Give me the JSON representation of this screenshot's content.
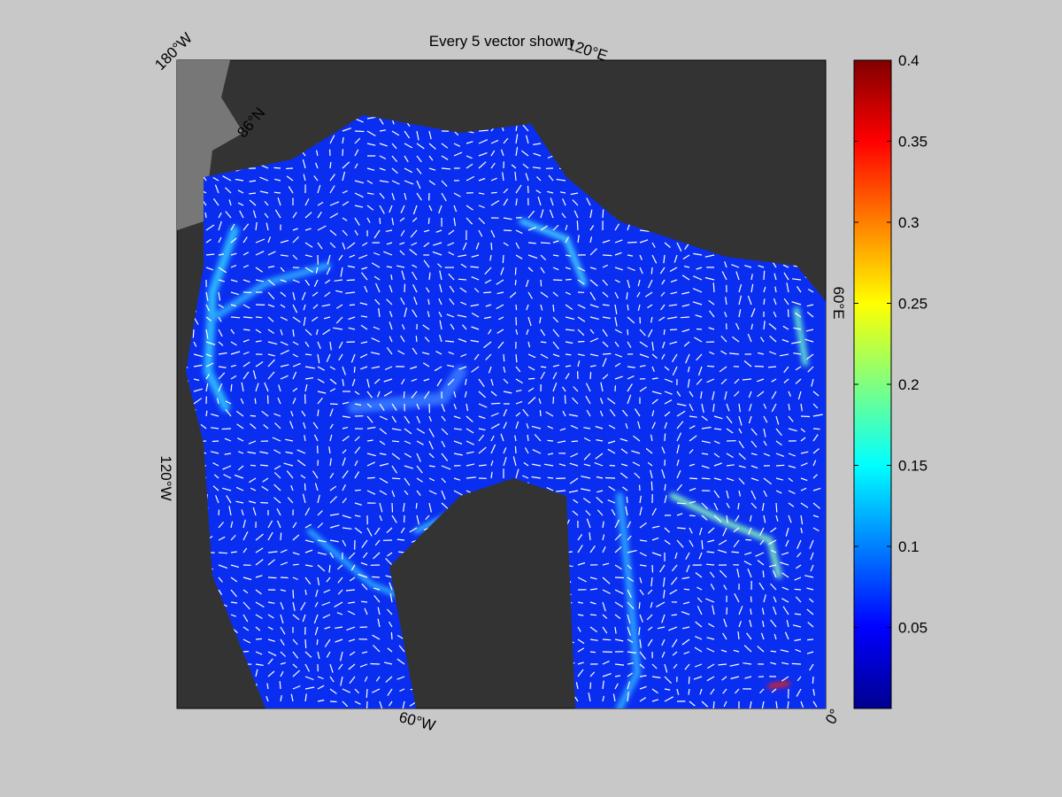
{
  "title": "Every 5 vector shown",
  "map_labels": {
    "lon_180w": "180°W",
    "lon_120e": "120°E",
    "lon_60e": "60°E",
    "lon_0": "0°",
    "lon_60w": "60°W",
    "lon_120w": "120°W",
    "lat_86n": "86°N"
  },
  "colorbar": {
    "lim": [
      0,
      0.4
    ],
    "ticks": [
      0.05,
      0.1,
      0.15,
      0.2,
      0.25,
      0.3,
      0.35,
      0.4
    ]
  }
}
